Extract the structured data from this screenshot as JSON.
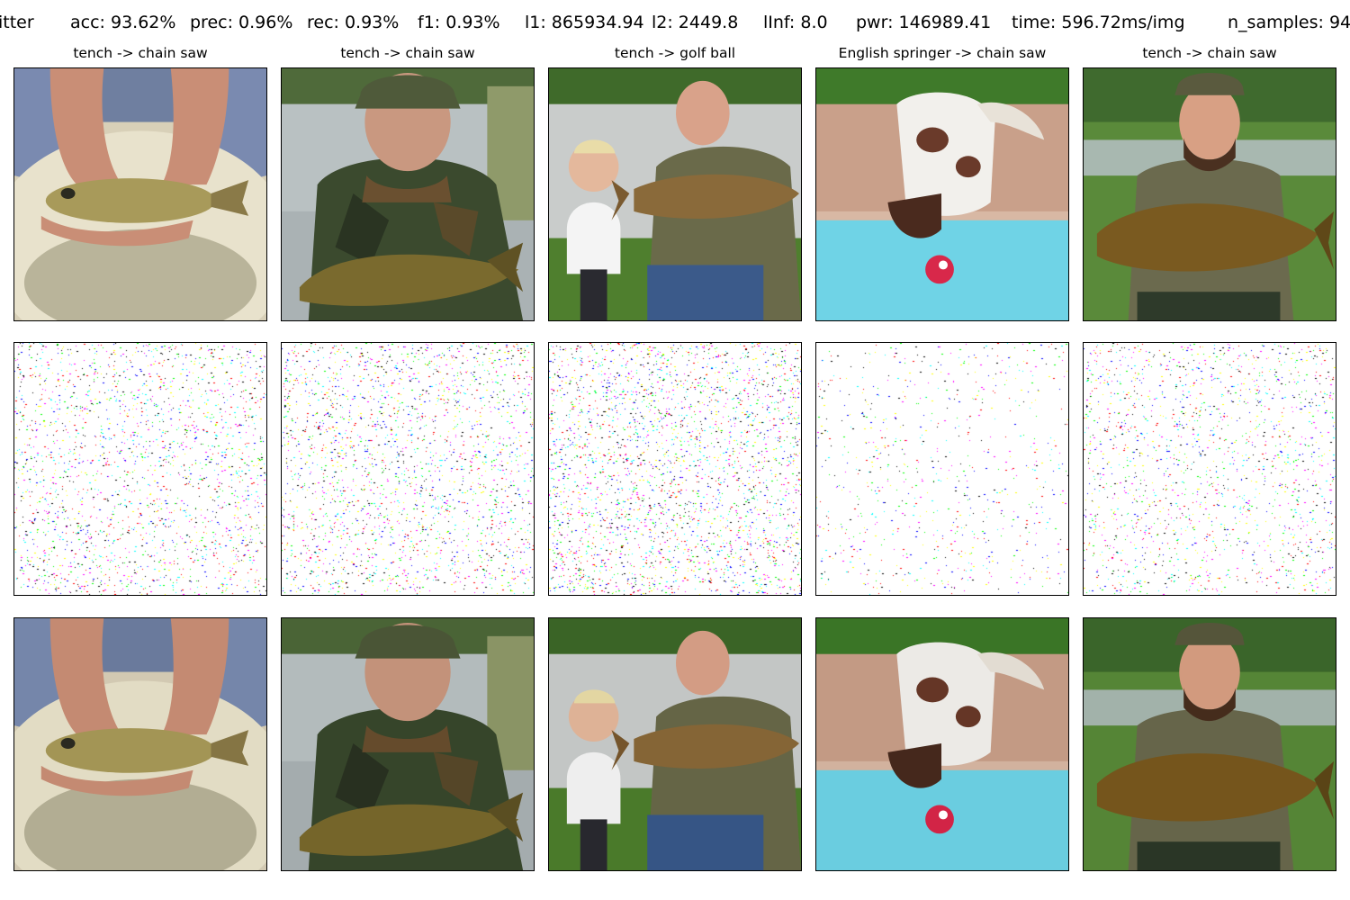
{
  "header": {
    "attack_name": "itter",
    "acc": "acc: 93.62%",
    "prec": "prec: 0.96%",
    "rec": "rec: 0.93%",
    "f1": "f1: 0.93%",
    "l1": "l1: 865934.94",
    "l2": "l2: 2449.8",
    "linf": "lInf: 8.0",
    "pwr": "pwr: 146989.41",
    "time": "time: 596.72ms/img",
    "n_samples": "n_samples: 94"
  },
  "columns": [
    {
      "title": "tench -> chain saw",
      "original": "hands holding a tench over a tub",
      "perturbation": "sparse colored perturbation noise",
      "adversarial": "hands holding a tench over a tub (perturbed)",
      "noise_density": 0.055
    },
    {
      "title": "tench -> chain saw",
      "original": "man in camouflage holding a tench by a lake",
      "perturbation": "sparse colored perturbation noise",
      "adversarial": "man in camouflage holding a tench (perturbed)",
      "noise_density": 0.06
    },
    {
      "title": "tench -> golf ball",
      "original": "man and child holding a large carp",
      "perturbation": "sparse colored perturbation noise",
      "adversarial": "man and child holding a large carp (perturbed)",
      "noise_density": 0.075
    },
    {
      "title": "English springer -> chain saw",
      "original": "springer spaniel at a pool edge with a red ball",
      "perturbation": "sparse colored perturbation noise",
      "adversarial": "springer spaniel at a pool edge (perturbed)",
      "noise_density": 0.02
    },
    {
      "title": "tench -> chain saw",
      "original": "bearded man in cap holding a tench",
      "perturbation": "sparse colored perturbation noise",
      "adversarial": "bearded man in cap holding a tench (perturbed)",
      "noise_density": 0.045
    }
  ],
  "noise_colors": [
    "#ff00ff",
    "#00ffff",
    "#ffff00",
    "#0000ff",
    "#ff0000",
    "#00ff00",
    "#000000"
  ]
}
